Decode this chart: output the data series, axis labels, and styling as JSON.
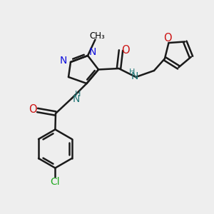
{
  "bg_color": "#eeeeee",
  "bond_color": "#1a1a1a",
  "bond_lw": 1.8,
  "N_color": "#1010dd",
  "O_color": "#cc1010",
  "Cl_color": "#22aa22",
  "NH_color": "#227777",
  "figsize": [
    3.0,
    3.0
  ],
  "dpi": 100,
  "xlim": [
    0,
    10
  ],
  "ylim": [
    0,
    10
  ]
}
